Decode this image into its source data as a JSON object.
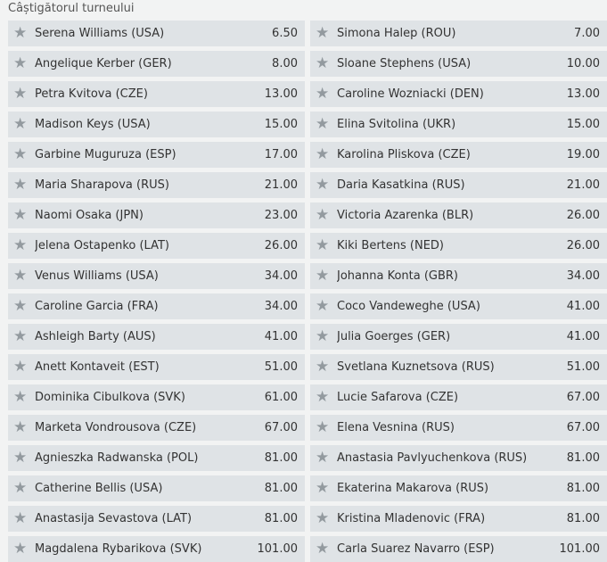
{
  "title": "Câștigătorul turneului",
  "colors": {
    "row_bg": "#dfe3e6",
    "star": "#939a9f",
    "page_bg": "#f2f3f3"
  },
  "icon": "star-icon",
  "selections": [
    {
      "name": "Serena Williams (USA)",
      "odds": "6.50"
    },
    {
      "name": "Simona Halep (ROU)",
      "odds": "7.00"
    },
    {
      "name": "Angelique Kerber (GER)",
      "odds": "8.00"
    },
    {
      "name": "Sloane Stephens (USA)",
      "odds": "10.00"
    },
    {
      "name": "Petra Kvitova (CZE)",
      "odds": "13.00"
    },
    {
      "name": "Caroline Wozniacki (DEN)",
      "odds": "13.00"
    },
    {
      "name": "Madison Keys (USA)",
      "odds": "15.00"
    },
    {
      "name": "Elina Svitolina (UKR)",
      "odds": "15.00"
    },
    {
      "name": "Garbine Muguruza (ESP)",
      "odds": "17.00"
    },
    {
      "name": "Karolina Pliskova (CZE)",
      "odds": "19.00"
    },
    {
      "name": "Maria Sharapova (RUS)",
      "odds": "21.00"
    },
    {
      "name": "Daria Kasatkina (RUS)",
      "odds": "21.00"
    },
    {
      "name": "Naomi Osaka (JPN)",
      "odds": "23.00"
    },
    {
      "name": "Victoria Azarenka (BLR)",
      "odds": "26.00"
    },
    {
      "name": "Jelena Ostapenko (LAT)",
      "odds": "26.00"
    },
    {
      "name": "Kiki Bertens (NED)",
      "odds": "26.00"
    },
    {
      "name": "Venus Williams (USA)",
      "odds": "34.00"
    },
    {
      "name": "Johanna Konta (GBR)",
      "odds": "34.00"
    },
    {
      "name": "Caroline Garcia (FRA)",
      "odds": "34.00"
    },
    {
      "name": "Coco Vandeweghe (USA)",
      "odds": "41.00"
    },
    {
      "name": "Ashleigh Barty (AUS)",
      "odds": "41.00"
    },
    {
      "name": "Julia Goerges (GER)",
      "odds": "41.00"
    },
    {
      "name": "Anett Kontaveit (EST)",
      "odds": "51.00"
    },
    {
      "name": "Svetlana Kuznetsova (RUS)",
      "odds": "51.00"
    },
    {
      "name": "Dominika Cibulkova (SVK)",
      "odds": "61.00"
    },
    {
      "name": "Lucie Safarova (CZE)",
      "odds": "67.00"
    },
    {
      "name": "Marketa Vondrousova (CZE)",
      "odds": "67.00"
    },
    {
      "name": "Elena Vesnina (RUS)",
      "odds": "67.00"
    },
    {
      "name": "Agnieszka Radwanska (POL)",
      "odds": "81.00"
    },
    {
      "name": "Anastasia Pavlyuchenkova (RUS)",
      "odds": "81.00"
    },
    {
      "name": "Catherine Bellis (USA)",
      "odds": "81.00"
    },
    {
      "name": "Ekaterina Makarova (RUS)",
      "odds": "81.00"
    },
    {
      "name": "Anastasija Sevastova (LAT)",
      "odds": "81.00"
    },
    {
      "name": "Kristina Mladenovic (FRA)",
      "odds": "81.00"
    },
    {
      "name": "Magdalena Rybarikova (SVK)",
      "odds": "101.00"
    },
    {
      "name": "Carla Suarez Navarro (ESP)",
      "odds": "101.00"
    }
  ]
}
